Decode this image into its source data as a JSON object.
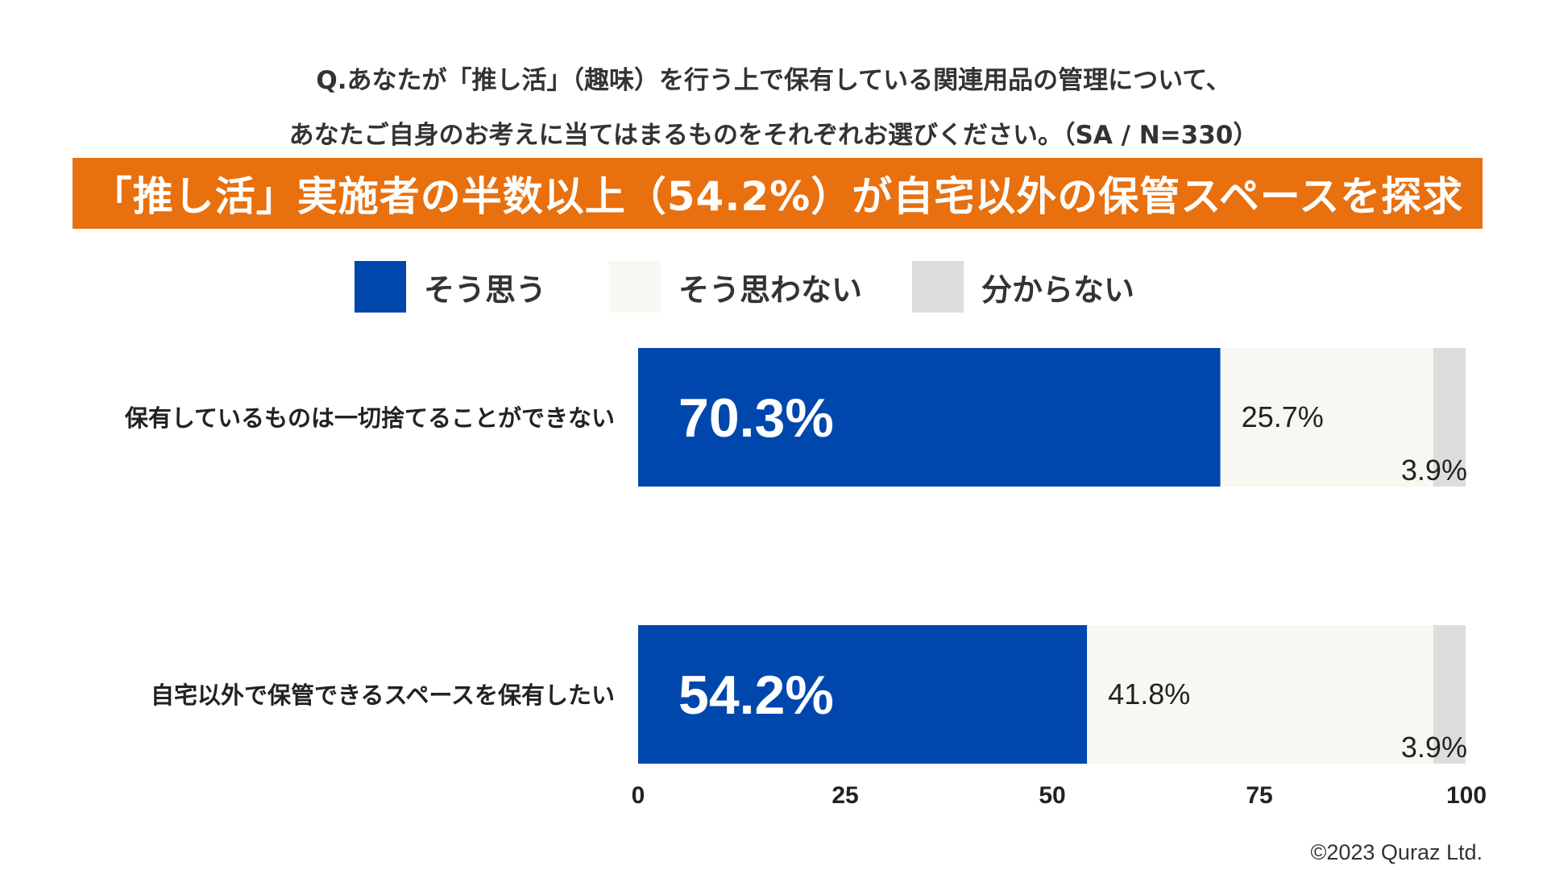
{
  "header": {
    "question_line1": "Q.あなたが「推し活」（趣味）を行う上で保有している関連用品の管理について、",
    "question_line2": "あなたご自身のお考えに当てはまるものをそれぞれお選びください。（SA / N=330）",
    "banner": "「推し活」実施者の半数以上（54.2%）が自宅以外の保管スペースを探求"
  },
  "legend": [
    {
      "label": "そう思う",
      "color": "#0047AD"
    },
    {
      "label": "そう思わない",
      "color": "#F6F8F1"
    },
    {
      "label": "分からない",
      "color": "#DDDDDD"
    }
  ],
  "chart_data": {
    "type": "bar",
    "orientation": "horizontal",
    "stacked": true,
    "categories": [
      "保有しているものは一切捨てることができない",
      "自宅以外で保管できるスペースを保有したい"
    ],
    "series": [
      {
        "name": "そう思う",
        "values": [
          70.3,
          54.2
        ],
        "color": "#0047AD"
      },
      {
        "name": "そう思わない",
        "values": [
          25.7,
          41.8
        ],
        "color": "#F6F8F1"
      },
      {
        "name": "分からない",
        "values": [
          3.9,
          3.9
        ],
        "color": "#DDDDDD"
      }
    ],
    "data_labels": [
      [
        "70.3%",
        "25.7%",
        "3.9%"
      ],
      [
        "54.2%",
        "41.8%",
        "3.9%"
      ]
    ],
    "xlim": [
      0,
      100
    ],
    "xticks": [
      "0",
      "25",
      "50",
      "75",
      "100"
    ],
    "legend_position": "top",
    "grid": false
  },
  "footer": {
    "copyright": "©2023 Quraz Ltd."
  }
}
